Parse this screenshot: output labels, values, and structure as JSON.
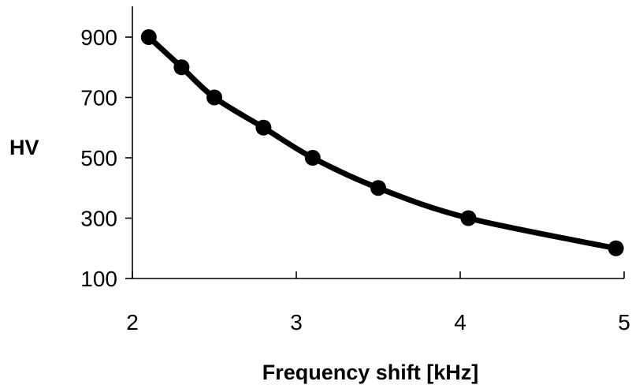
{
  "chart_data": {
    "type": "line",
    "title": "",
    "xlabel": "Frequency shift [kHz]",
    "ylabel": "HV",
    "xlim": [
      2,
      5
    ],
    "ylim": [
      100,
      1000
    ],
    "x_ticks": [
      2,
      3,
      4,
      5
    ],
    "y_ticks": [
      100,
      300,
      500,
      700,
      900
    ],
    "x_tick_labels": [
      "2",
      "3",
      "4",
      "5"
    ],
    "y_tick_labels": [
      "100",
      "300",
      "500",
      "700",
      "900"
    ],
    "grid": false,
    "legend": "none",
    "series": [
      {
        "x": [
          2.1,
          2.3,
          2.5,
          2.8,
          3.1,
          3.5,
          4.05,
          4.95
        ],
        "y": [
          900,
          800,
          700,
          600,
          500,
          400,
          300,
          200
        ],
        "color": "#000000",
        "marker": "circle",
        "smooth": true
      }
    ]
  }
}
